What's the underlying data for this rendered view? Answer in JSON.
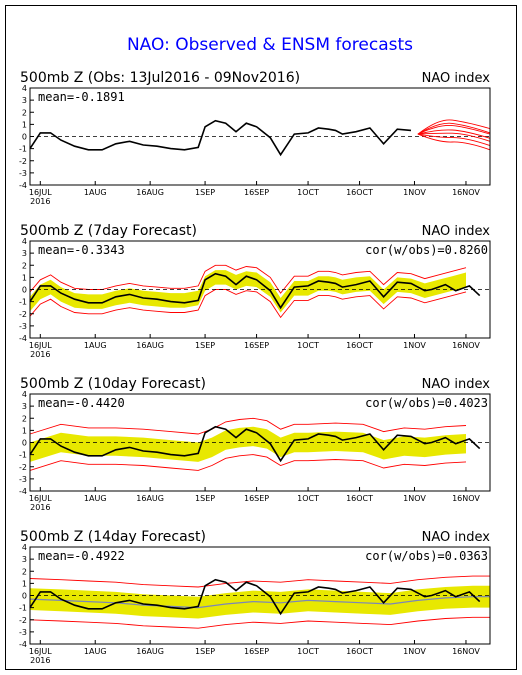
{
  "title": "NAO: Observed & ENSM forecasts",
  "x_tick_labels": [
    "16JUL",
    "1AUG",
    "16AUG",
    "1SEP",
    "16SEP",
    "1OCT",
    "16OCT",
    "1NOV",
    "16NOV"
  ],
  "year_label": "2016",
  "y_tick_labels": [
    "4",
    "3",
    "2",
    "1",
    "0",
    "-1",
    "-2",
    "-3",
    "-4"
  ],
  "colors": {
    "title": "#0000ff",
    "obs": "#000000",
    "forecast_member": "#ff0000",
    "spread_band": "#e8e800",
    "ens_mean_14d": "#7b86b9",
    "zero_line": "#000000"
  },
  "panels": [
    {
      "heading": "500mb Z (Obs: 13Jul2016 - 09Nov2016)",
      "index_label": "NAO index",
      "mean_text": "mean=-0.1891",
      "cor_text": ""
    },
    {
      "heading": "500mb Z (7day Forecast)",
      "index_label": "NAO index",
      "mean_text": "mean=-0.3343",
      "cor_text": "cor(w/obs)=0.8260"
    },
    {
      "heading": "500mb Z (10day Forecast)",
      "index_label": "NAO index",
      "mean_text": "mean=-0.4420",
      "cor_text": "cor(w/obs)=0.4023"
    },
    {
      "heading": "500mb Z (14day Forecast)",
      "index_label": "NAO index",
      "mean_text": "mean=-0.4922",
      "cor_text": "cor(w/obs)=0.0363"
    }
  ],
  "chart_data": {
    "type": "line",
    "title": "NAO: Observed & ENSM forecasts",
    "ylim": [
      -4,
      4
    ],
    "x_unit": "day index (0 = 16JUL 2016, 123 = 16NOV 2016)",
    "xlim": [
      -3,
      131
    ],
    "observed": {
      "x": [
        -3,
        0,
        3,
        6,
        10,
        14,
        18,
        22,
        26,
        30,
        34,
        38,
        42,
        46,
        48,
        51,
        54,
        57,
        60,
        63,
        67,
        70,
        74,
        78,
        81,
        84,
        86,
        88,
        92,
        96,
        100,
        104,
        108,
        112,
        114,
        116,
        118,
        121,
        125,
        128
      ],
      "y": [
        -1.0,
        0.3,
        0.3,
        -0.3,
        -0.8,
        -1.1,
        -1.1,
        -0.6,
        -0.4,
        -0.7,
        -0.8,
        -1.0,
        -1.1,
        -0.9,
        0.8,
        1.3,
        1.1,
        0.4,
        1.1,
        0.8,
        -0.1,
        -1.5,
        0.2,
        0.3,
        0.7,
        0.6,
        0.5,
        0.2,
        0.4,
        0.7,
        -0.6,
        0.6,
        0.5,
        -0.1,
        0.0,
        0.2,
        0.4,
        -0.1,
        0.3,
        -0.5
      ]
    },
    "forecast_plume_obs_panel": {
      "x_start": 110,
      "x_end": 131,
      "members_peak": [
        1.2,
        1.5,
        1.0,
        0.6,
        0.3,
        -0.1,
        -0.5
      ]
    },
    "series": [
      {
        "panel": "7day Forecast",
        "ens_mean": {
          "x": [
            -3,
            0,
            3,
            6,
            10,
            14,
            18,
            22,
            26,
            30,
            34,
            38,
            42,
            46,
            48,
            51,
            54,
            57,
            60,
            63,
            67,
            70,
            74,
            78,
            81,
            84,
            86,
            88,
            92,
            96,
            100,
            104,
            108,
            112,
            116,
            120,
            124
          ],
          "y": [
            -1.2,
            -0.2,
            0.2,
            -0.4,
            -0.9,
            -1.0,
            -1.0,
            -0.7,
            -0.5,
            -0.7,
            -0.8,
            -0.9,
            -0.9,
            -0.7,
            0.5,
            1.0,
            1.0,
            0.6,
            0.9,
            0.8,
            0.0,
            -1.3,
            0.1,
            0.1,
            0.5,
            0.5,
            0.4,
            0.2,
            0.4,
            0.5,
            -0.6,
            0.4,
            0.3,
            -0.1,
            0.2,
            0.5,
            0.8
          ]
        },
        "band_half_width": 0.6,
        "envelope_half_width": 1.0
      },
      {
        "panel": "10day Forecast",
        "ens_mean": {
          "x": [
            -3,
            6,
            14,
            22,
            30,
            38,
            46,
            50,
            54,
            58,
            62,
            66,
            70,
            74,
            78,
            86,
            94,
            100,
            106,
            112,
            118,
            124
          ],
          "y": [
            -0.8,
            0.0,
            -0.3,
            -0.3,
            -0.4,
            -0.6,
            -0.8,
            -0.4,
            0.2,
            0.4,
            0.5,
            0.3,
            -0.4,
            0.0,
            0.0,
            0.1,
            0.0,
            -0.6,
            -0.3,
            -0.4,
            -0.2,
            -0.1
          ]
        },
        "band_half_width": 0.8,
        "envelope_half_width": 1.5
      },
      {
        "panel": "14day Forecast",
        "ens_mean": {
          "x": [
            -3,
            6,
            14,
            22,
            30,
            38,
            46,
            54,
            62,
            70,
            78,
            86,
            94,
            102,
            110,
            118,
            126,
            131
          ],
          "y": [
            -0.3,
            -0.4,
            -0.5,
            -0.6,
            -0.8,
            -0.9,
            -1.0,
            -0.7,
            -0.5,
            -0.6,
            -0.4,
            -0.5,
            -0.6,
            -0.7,
            -0.4,
            -0.2,
            -0.1,
            -0.1
          ]
        },
        "band_half_width": 0.9,
        "envelope_half_width": 1.7
      }
    ]
  }
}
